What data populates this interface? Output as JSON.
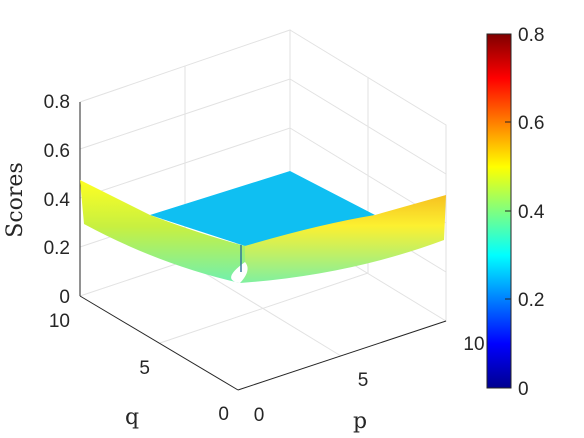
{
  "chart_data": {
    "type": "surface",
    "title": "",
    "xlabel": "p",
    "ylabel": "q",
    "zlabel": "Scores",
    "xlim": [
      0,
      10
    ],
    "ylim": [
      0,
      10
    ],
    "zlim": [
      0,
      0.8
    ],
    "x_ticks": [
      "0",
      "5",
      "10"
    ],
    "y_ticks": [
      "0",
      "5",
      "10"
    ],
    "z_ticks": [
      "0",
      "0.2",
      "0.4",
      "0.6",
      "0.8"
    ],
    "grid": true,
    "colormap": "jet",
    "colorbar": {
      "position": "right",
      "limits": [
        0,
        0.8
      ],
      "ticks": [
        "0",
        "0.2",
        "0.4",
        "0.6",
        "0.8"
      ]
    },
    "surface_description": {
      "plateau_value": 0.27,
      "edge_values": {
        "p_at_0_q_at_10": 0.48,
        "p_at_10_q_at_0": 0.48,
        "p_at_0_q_at_0": 0.32
      }
    }
  }
}
